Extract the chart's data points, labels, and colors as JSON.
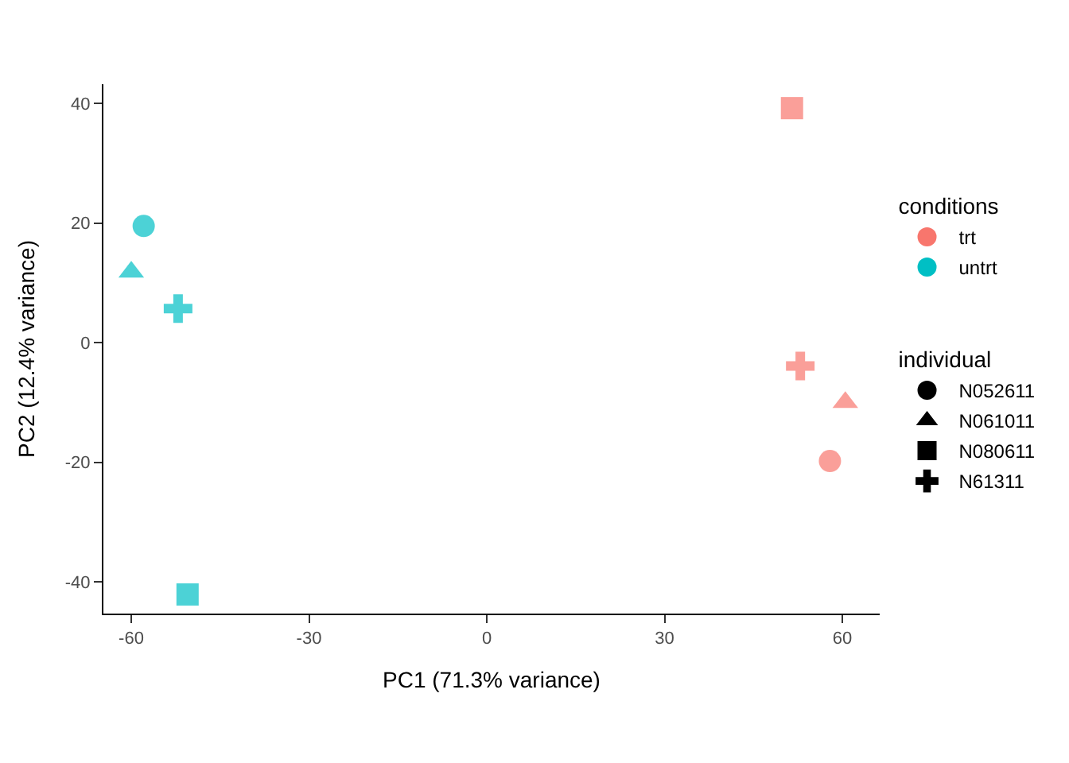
{
  "chart_data": {
    "type": "scatter",
    "xlabel": "PC1 (71.3% variance)",
    "ylabel": "PC2 (12.4% variance)",
    "legend_title": [
      "conditions",
      "individual"
    ],
    "series": [
      {
        "name": "trt",
        "color": "#f8766d",
        "marker": [
          "circle",
          "triangle",
          "square",
          "cross"
        ],
        "x": [
          57.9,
          60.5,
          51.5,
          52.9
        ],
        "values": [
          -19.8,
          -10,
          39.2,
          -3.9
        ]
      },
      {
        "name": "untrt",
        "color": "#00bfc4",
        "marker": [
          "circle",
          "triangle",
          "square",
          "cross"
        ],
        "x": [
          -57.9,
          -60,
          -50.5,
          -52.1
        ],
        "values": [
          19.5,
          11.8,
          -42.1,
          5.7
        ]
      },
      {
        "name": "N052611",
        "marker": "circle",
        "color": "#000000"
      },
      {
        "name": "N061011",
        "marker": "triangle",
        "color": "#000000"
      },
      {
        "name": "N080611",
        "marker": "square",
        "color": "#000000"
      },
      {
        "name": "N61311",
        "marker": "cross",
        "color": "#000000"
      }
    ],
    "xlim": [
      -64.7,
      66.3
    ],
    "ylim": [
      -45.3,
      43.2
    ],
    "xticks": [
      -60,
      -30,
      0,
      30,
      60
    ],
    "yticks": [
      -40,
      -20,
      0,
      20,
      40
    ],
    "legend": "right"
  }
}
